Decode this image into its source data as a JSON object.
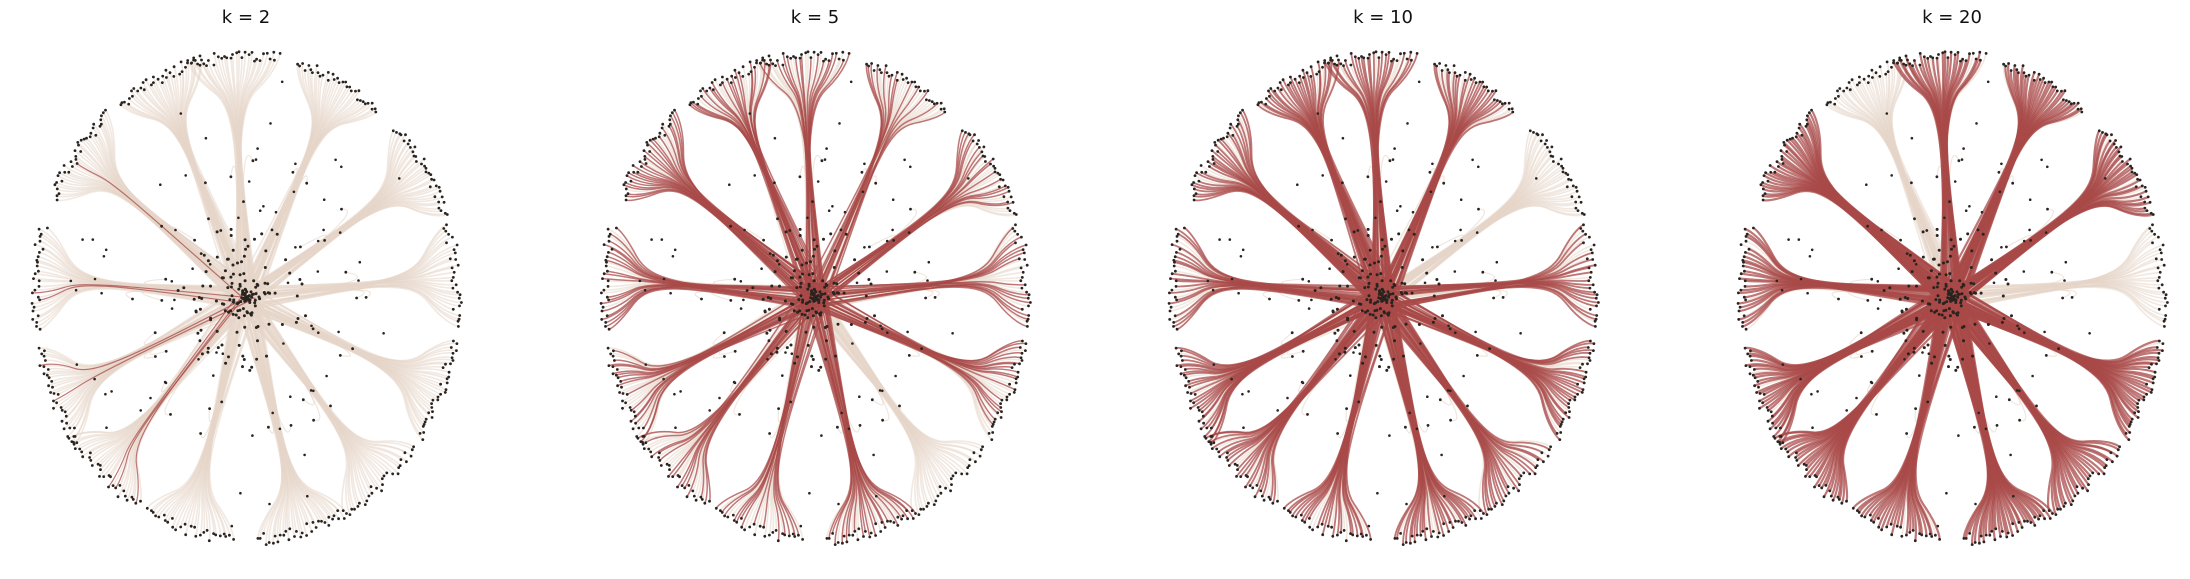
{
  "figure": {
    "panels": [
      {
        "title": "k = 2",
        "k": 2
      },
      {
        "title": "k = 5",
        "k": 5
      },
      {
        "title": "k = 10",
        "k": 10
      },
      {
        "title": "k = 20",
        "k": 20
      }
    ],
    "colors": {
      "background": "#ffffff",
      "faint_edge": "#e6d6c8",
      "highlight_edge": "#a84a48",
      "node": "#2a2420",
      "title_text": "#111111"
    },
    "chart_data": {
      "type": "graph",
      "description_visible": "four edge-bundled radial tree layouts; highlighted edges increase with k",
      "series": [
        {
          "k": 2
        },
        {
          "k": 5
        },
        {
          "k": 10
        },
        {
          "k": 20
        }
      ]
    }
  }
}
